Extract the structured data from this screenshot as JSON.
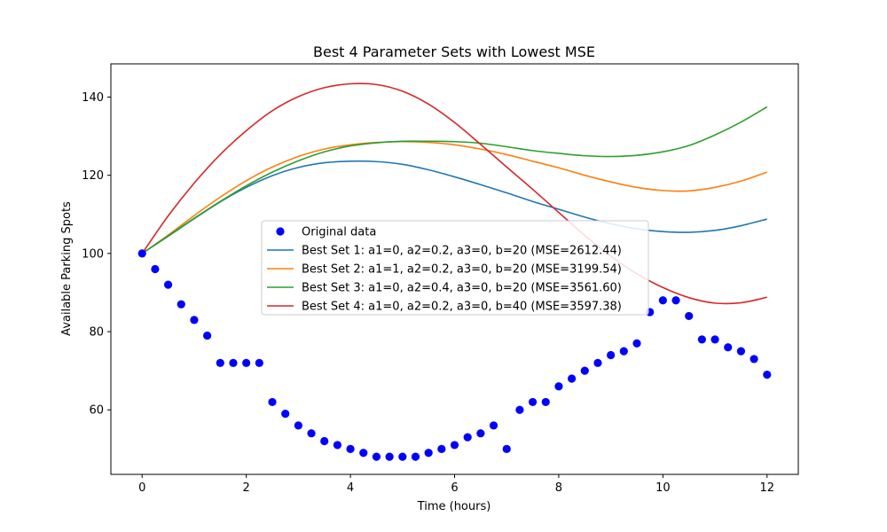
{
  "chart_data": {
    "type": "line",
    "title": "Best 4 Parameter Sets with Lowest MSE",
    "xlabel": "Time (hours)",
    "ylabel": "Available Parking Spots",
    "xlim": [
      -0.6,
      12.6
    ],
    "ylim": [
      43.5,
      148.5
    ],
    "xticks": [
      0,
      2,
      4,
      6,
      8,
      10,
      12
    ],
    "yticks": [
      60,
      80,
      100,
      120,
      140
    ],
    "grid": false,
    "legend_position": "center",
    "scatter": {
      "name": "Original data",
      "color": "#0000ff",
      "x": [
        0,
        0.25,
        0.5,
        0.75,
        1,
        1.25,
        1.5,
        1.75,
        2,
        2.25,
        2.5,
        2.75,
        3,
        3.25,
        3.5,
        3.75,
        4,
        4.25,
        4.5,
        4.75,
        5,
        5.25,
        5.5,
        5.75,
        6,
        6.25,
        6.5,
        6.75,
        7,
        7.25,
        7.5,
        7.75,
        8,
        8.25,
        8.5,
        8.75,
        9,
        9.25,
        9.5,
        9.75,
        10,
        10.25,
        10.5,
        10.75,
        11,
        11.25,
        11.5,
        11.75,
        12
      ],
      "y": [
        100,
        96,
        92,
        87,
        83,
        79,
        72,
        72,
        72,
        72,
        62,
        59,
        56,
        54,
        52,
        51,
        50,
        49,
        48,
        48,
        48,
        48,
        49,
        50,
        51,
        53,
        54,
        56,
        50,
        60,
        62,
        62,
        66,
        68,
        70,
        72,
        74,
        75,
        77,
        85,
        88,
        88,
        84,
        78,
        78,
        76,
        75,
        73,
        69
      ]
    },
    "x": [
      0,
      0.5,
      1,
      1.5,
      2,
      2.5,
      3,
      3.5,
      4,
      4.5,
      5,
      5.5,
      6,
      6.5,
      7,
      7.5,
      8,
      8.5,
      9,
      9.5,
      10,
      10.5,
      11,
      11.5,
      12
    ],
    "series": [
      {
        "name": "Best Set 1: a1=0, a2=0.2, a3=0, b=20 (MSE=2612.44)",
        "color": "#1f77b4",
        "values": [
          100,
          104.4,
          108.9,
          113.2,
          116.9,
          119.9,
          122.0,
          123.2,
          123.6,
          123.5,
          122.8,
          121.4,
          119.6,
          117.6,
          115.5,
          113.3,
          111.3,
          109.3,
          107.6,
          106.3,
          105.6,
          105.4,
          105.9,
          107.1,
          108.8
        ]
      },
      {
        "name": "Best Set 2: a1=1, a2=0.2, a3=0, b=20 (MSE=3199.54)",
        "color": "#ff7f0e",
        "values": [
          100,
          104.7,
          109.7,
          114.4,
          118.6,
          122.1,
          124.8,
          126.7,
          127.8,
          128.4,
          128.6,
          128.4,
          127.8,
          126.7,
          125.3,
          123.6,
          121.9,
          120.0,
          118.3,
          116.9,
          116.1,
          116.0,
          116.9,
          118.5,
          120.8
        ]
      },
      {
        "name": "Best Set 3: a1=0, a2=0.4, a3=0, b=20 (MSE=3561.60)",
        "color": "#2ca02c",
        "values": [
          100,
          104.5,
          109.0,
          113.3,
          117.3,
          120.8,
          123.7,
          126.0,
          127.5,
          128.3,
          128.7,
          128.7,
          128.6,
          128.2,
          127.3,
          126.3,
          125.6,
          125.0,
          124.8,
          125.1,
          126.0,
          127.6,
          130.3,
          133.6,
          137.5
        ]
      },
      {
        "name": "Best Set 4: a1=0, a2=0.2, a3=0, b=40 (MSE=3597.38)",
        "color": "#d62728",
        "values": [
          100,
          109.6,
          118.0,
          125.3,
          131.4,
          136.5,
          140.1,
          142.4,
          143.4,
          143.2,
          141.5,
          138.2,
          133.5,
          127.9,
          122.1,
          116.4,
          110.5,
          104.6,
          99.3,
          94.8,
          91.3,
          88.7,
          87.3,
          87.4,
          88.8
        ]
      }
    ]
  }
}
